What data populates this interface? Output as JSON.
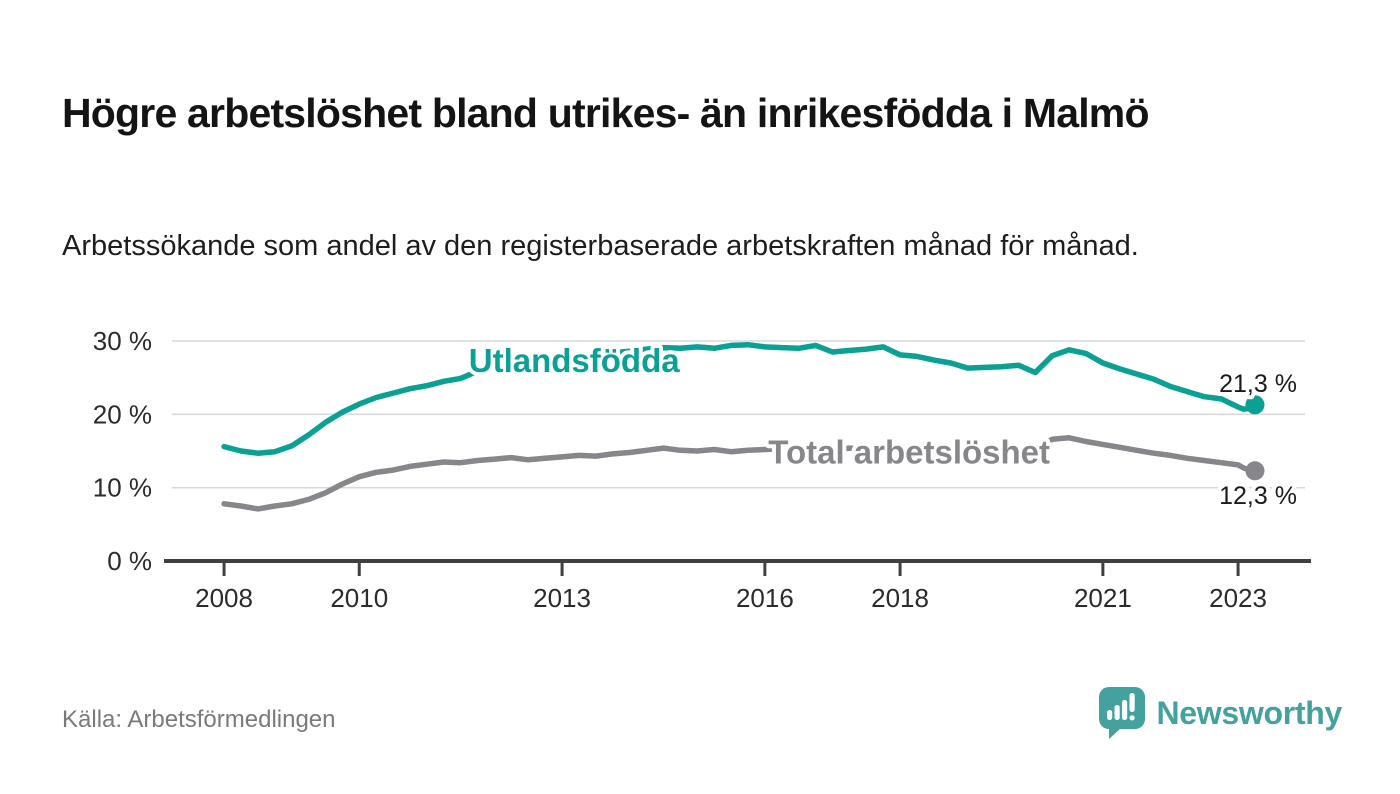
{
  "header": {
    "title": "Högre arbetslöshet bland utrikes- än inrikesfödda i Malmö",
    "subtitle": "Arbetssökande som andel av den registerbaserade arbetskraften månad för månad."
  },
  "footer": {
    "source": "Källa: Arbetsförmedlingen",
    "brand": "Newsworthy"
  },
  "colors": {
    "teal_line": "#0aa093",
    "gray_line": "#87878b",
    "grid": "#d9d9d9",
    "axis": "#404040",
    "tick_text": "#2b2b2b",
    "value_text": "#1b1b1b",
    "logo_teal": "#45a19d",
    "title_text": "#141414",
    "source_text": "#7a7a7e"
  },
  "chart_data": {
    "type": "line",
    "unit": "%",
    "grid": true,
    "legend": "inline-labels",
    "ylim": [
      0,
      32.8
    ],
    "xlim": [
      2007.23,
      2023.99
    ],
    "x": [
      2008,
      2008.25,
      2008.5,
      2008.75,
      2009,
      2009.25,
      2009.5,
      2009.75,
      2010,
      2010.25,
      2010.5,
      2010.75,
      2011,
      2011.25,
      2011.5,
      2011.75,
      2012,
      2012.25,
      2012.5,
      2012.75,
      2013,
      2013.25,
      2013.5,
      2013.75,
      2014,
      2014.25,
      2014.5,
      2014.75,
      2015,
      2015.25,
      2015.5,
      2015.75,
      2016,
      2016.25,
      2016.5,
      2016.75,
      2017,
      2017.25,
      2017.5,
      2017.75,
      2018,
      2018.25,
      2018.5,
      2018.75,
      2019,
      2019.25,
      2019.5,
      2019.75,
      2020,
      2020.25,
      2020.5,
      2020.75,
      2021,
      2021.25,
      2021.5,
      2021.75,
      2022,
      2022.25,
      2022.5,
      2022.75,
      2023,
      2023.08,
      2023.17,
      2023.25
    ],
    "series": [
      {
        "name": "Utlandsfödda",
        "color": "#0aa093",
        "end_label": "21,3 %",
        "end_value": 21.3,
        "end_label_position": "above",
        "label": {
          "x": 2011.62,
          "y": 25.8
        },
        "values": [
          15.6,
          15.0,
          14.7,
          14.9,
          15.7,
          17.2,
          18.9,
          20.3,
          21.4,
          22.3,
          22.9,
          23.5,
          23.9,
          24.5,
          24.9,
          25.9,
          26.8,
          27.0,
          26.8,
          27.3,
          27.8,
          28.0,
          28.2,
          28.4,
          28.6,
          28.9,
          29.1,
          29.0,
          29.2,
          29.0,
          29.4,
          29.5,
          29.2,
          29.1,
          29.0,
          29.4,
          28.5,
          28.7,
          28.9,
          29.2,
          28.1,
          27.9,
          27.4,
          27.0,
          26.3,
          26.4,
          26.5,
          26.7,
          25.7,
          28.0,
          28.8,
          28.3,
          27.0,
          26.2,
          25.5,
          24.8,
          23.8,
          23.1,
          22.4,
          22.1,
          21.0,
          20.7,
          20.8,
          21.3
        ]
      },
      {
        "name": "Total arbetslöshet",
        "color": "#87878b",
        "end_label": "12,3 %",
        "end_value": 12.3,
        "end_label_position": "below",
        "label": {
          "x": 2016.05,
          "y": 13.3
        },
        "values": [
          7.8,
          7.5,
          7.1,
          7.5,
          7.8,
          8.4,
          9.3,
          10.5,
          11.5,
          12.1,
          12.4,
          12.9,
          13.2,
          13.5,
          13.4,
          13.7,
          13.9,
          14.1,
          13.8,
          14.0,
          14.2,
          14.4,
          14.3,
          14.6,
          14.8,
          15.1,
          15.4,
          15.1,
          15.0,
          15.2,
          14.9,
          15.1,
          15.2,
          15.3,
          15.1,
          15.0,
          15.2,
          15.4,
          15.2,
          15.0,
          15.3,
          15.2,
          15.0,
          14.9,
          14.8,
          14.9,
          15.0,
          15.1,
          15.4,
          16.6,
          16.8,
          16.3,
          15.9,
          15.5,
          15.1,
          14.7,
          14.4,
          14.0,
          13.7,
          13.4,
          13.1,
          12.7,
          12.4,
          12.3
        ]
      }
    ],
    "xticks": [
      {
        "v": 2008,
        "label": "2008"
      },
      {
        "v": 2010,
        "label": "2010"
      },
      {
        "v": 2013,
        "label": "2013"
      },
      {
        "v": 2016,
        "label": "2016"
      },
      {
        "v": 2018,
        "label": "2018"
      },
      {
        "v": 2021,
        "label": "2021"
      },
      {
        "v": 2023,
        "label": "2023"
      }
    ],
    "yticks": [
      {
        "v": 0,
        "label": "0 %"
      },
      {
        "v": 10,
        "label": "10 %"
      },
      {
        "v": 20,
        "label": "20 %"
      },
      {
        "v": 30,
        "label": "30 %"
      }
    ]
  }
}
